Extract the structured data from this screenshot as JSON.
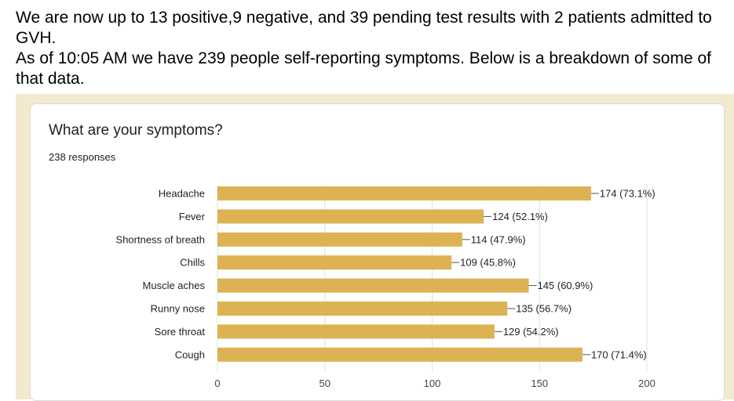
{
  "intro": {
    "line1": "We are now up to 13 positive,9 negative, and 39 pending test results with 2 patients admitted to GVH.",
    "line2": "As of 10:05 AM we have 239 people self-reporting symptoms. Below is a breakdown of some of that data."
  },
  "form": {
    "question": "What are your symptoms?",
    "responses": "238 responses"
  },
  "colors": {
    "bar": "#dcb252",
    "grid": "#e0e0e0",
    "frame": "#f3e9cf"
  },
  "chart_data": {
    "type": "bar",
    "orientation": "horizontal",
    "title": "What are your symptoms?",
    "subtitle": "238 responses",
    "categories": [
      "Headache",
      "Fever",
      "Shortness of breath",
      "Chills",
      "Muscle aches",
      "Runny nose",
      "Sore throat",
      "Cough"
    ],
    "values": [
      174,
      124,
      114,
      109,
      145,
      135,
      129,
      170
    ],
    "data_labels": [
      "174 (73.1%)",
      "124 (52.1%)",
      "114 (47.9%)",
      "109 (45.8%)",
      "145 (60.9%)",
      "135 (56.7%)",
      "129 (54.2%)",
      "170 (71.4%)"
    ],
    "xlim": [
      0,
      200
    ],
    "xticks": [
      0,
      50,
      100,
      150,
      200
    ],
    "grid": true,
    "xlabel": "",
    "ylabel": ""
  }
}
